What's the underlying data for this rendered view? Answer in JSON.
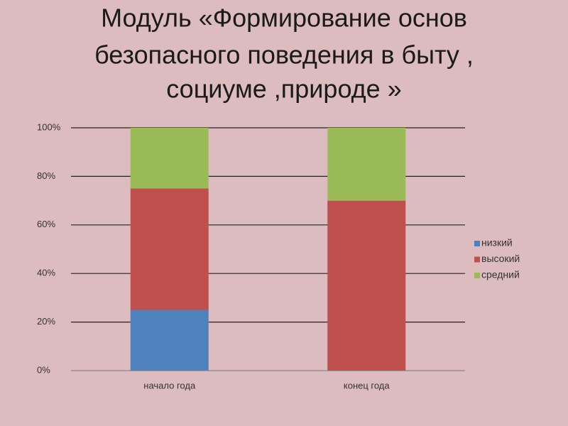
{
  "chart_data": {
    "type": "stacked_bar",
    "title": [
      "Модуль «Формирование основ",
      "безопасного поведения в быту ,",
      "социуме ,природе »"
    ],
    "categories": [
      "начало года",
      "конец года"
    ],
    "series": [
      {
        "name": "низкий",
        "color": "#4f81bd",
        "values": [
          25,
          0
        ]
      },
      {
        "name": "высокий",
        "color": "#c0504d",
        "values": [
          50,
          70
        ]
      },
      {
        "name": "средний",
        "color": "#9bbb59",
        "values": [
          25,
          30
        ]
      }
    ],
    "ylim": [
      0,
      100
    ],
    "yticks": [
      {
        "value": 0,
        "label": "0%"
      },
      {
        "value": 20,
        "label": "20%"
      },
      {
        "value": 40,
        "label": "40%"
      },
      {
        "value": 60,
        "label": "60%"
      },
      {
        "value": 80,
        "label": "80%"
      },
      {
        "value": 100,
        "label": "100%"
      }
    ],
    "grid": true,
    "legend": "right"
  }
}
